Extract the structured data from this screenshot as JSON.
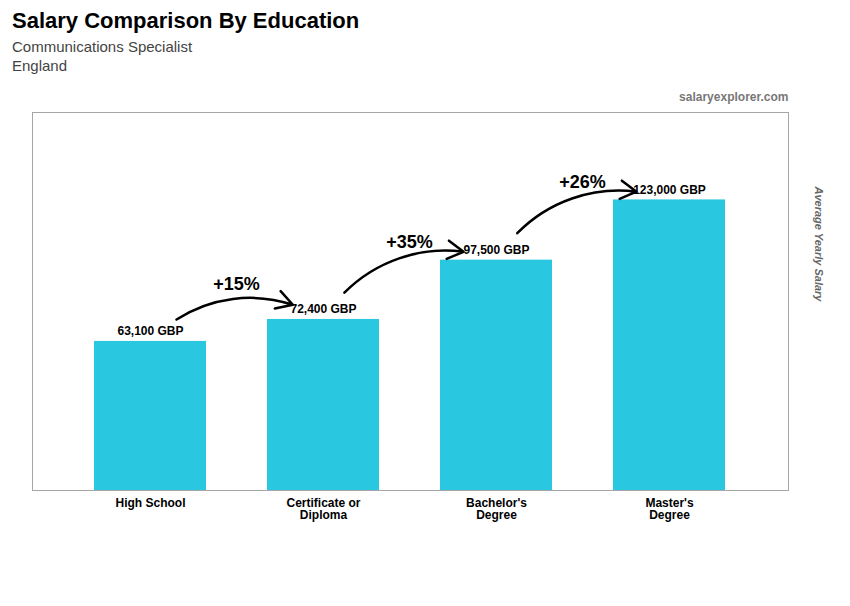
{
  "chart_data": {
    "type": "bar",
    "title": "Salary Comparison By Education",
    "subtitle": [
      "Communications Specialist",
      "England"
    ],
    "ylabel": "Average Yearly Salary",
    "categories": [
      "High School",
      "Certificate or\nDiploma",
      "Bachelor's\nDegree",
      "Master's\nDegree"
    ],
    "values": [
      63100,
      72400,
      97500,
      123000
    ],
    "value_labels": [
      "63,100 GBP",
      "72,400 GBP",
      "97,500 GBP",
      "123,000 GBP"
    ],
    "data_labels": true,
    "color": "#29c8e0",
    "ylim": [
      0,
      160000
    ],
    "tick_labels": "x",
    "annotations": [
      {
        "text": "+15%",
        "from": "High School",
        "to": "Certificate or\nDiploma"
      },
      {
        "text": "+35%",
        "from": "Certificate or\nDiploma",
        "to": "Bachelor's\nDegree"
      },
      {
        "text": "+26%",
        "from": "Bachelor's\nDegree",
        "to": "Master's\nDegree"
      },
      {
        "text": "salaryexplorer.com"
      }
    ]
  }
}
